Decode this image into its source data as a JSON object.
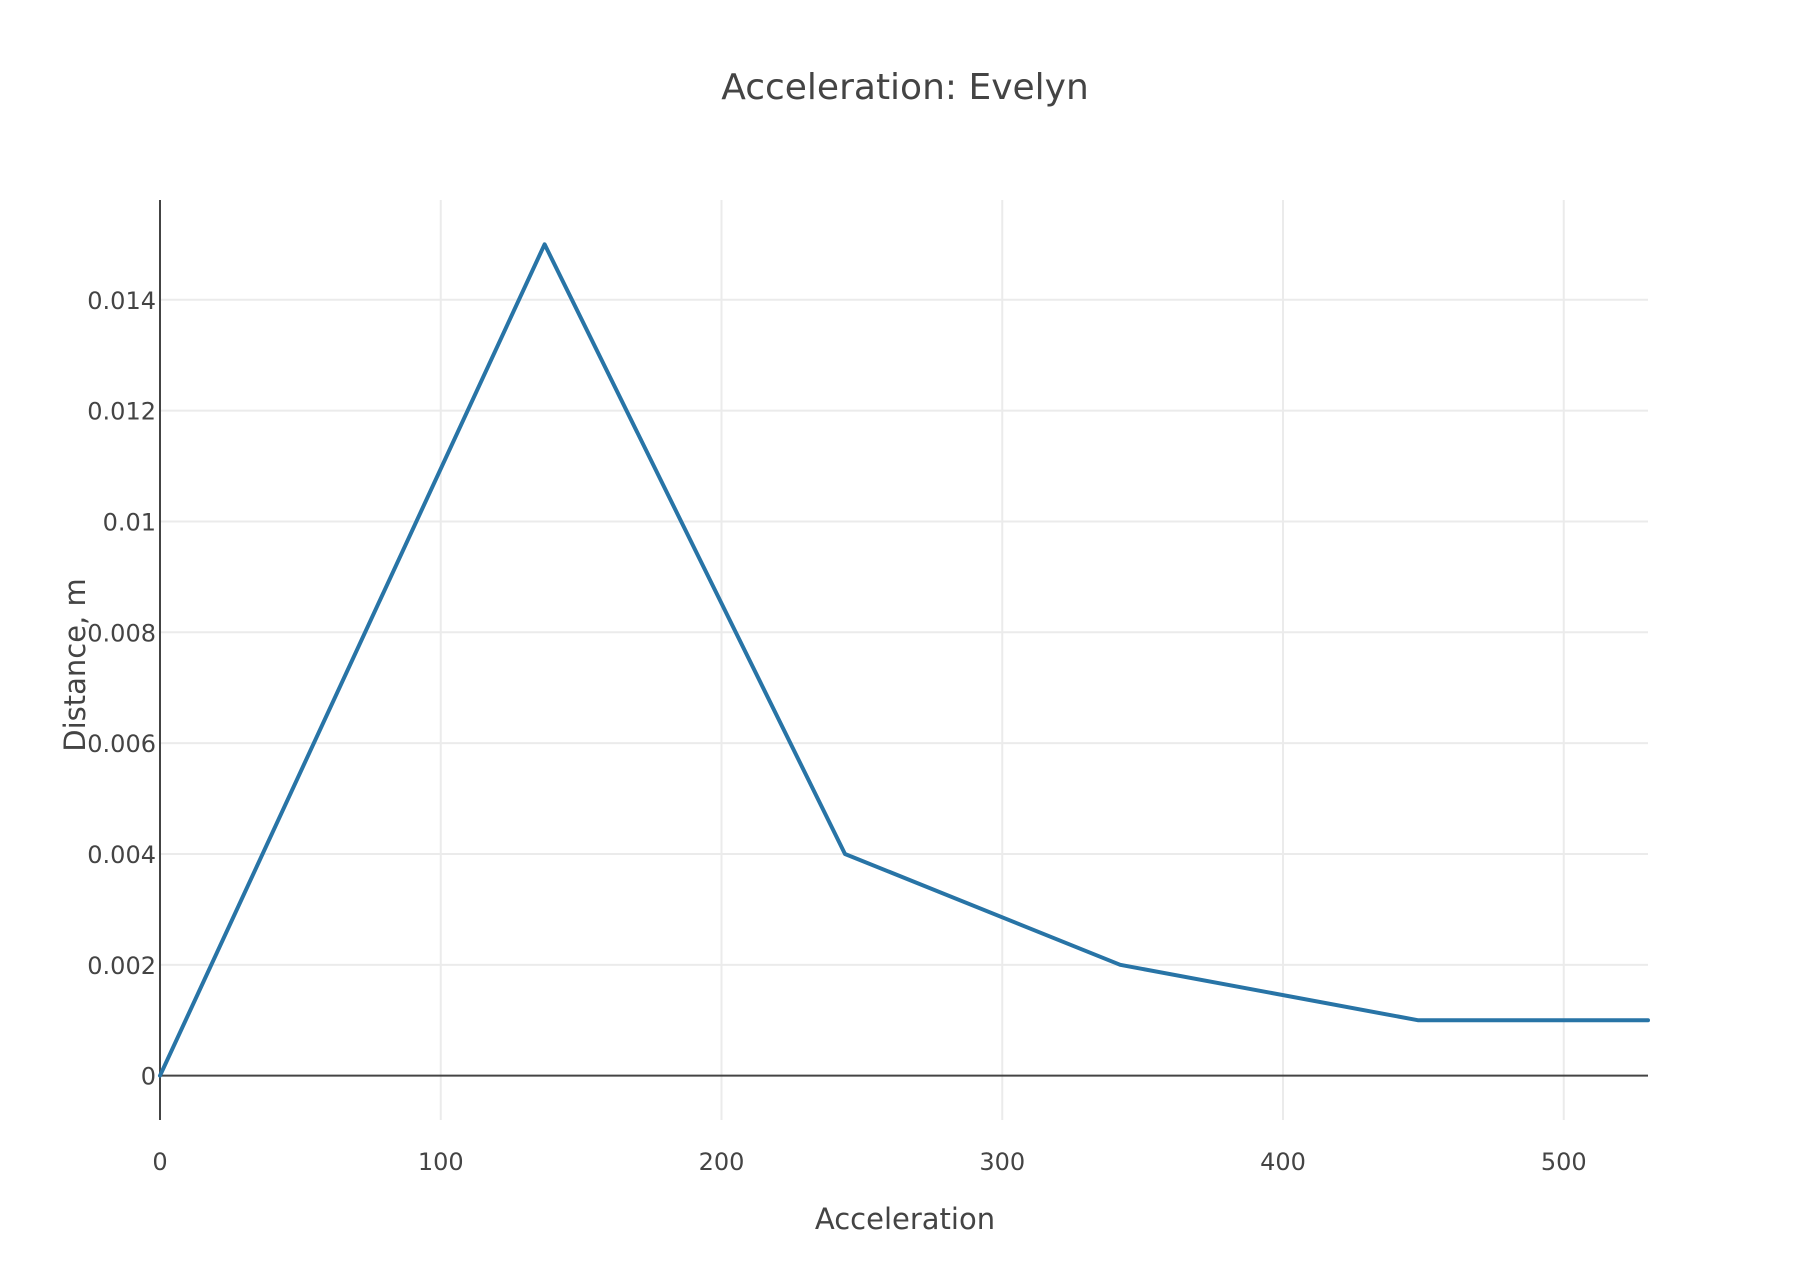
{
  "chart_data": {
    "type": "line",
    "title": "Acceleration: Evelyn",
    "xlabel": "Acceleration",
    "ylabel": "Distance, m",
    "xlim": [
      0,
      530
    ],
    "ylim": [
      -0.0008,
      0.0158
    ],
    "x_ticks": [
      0,
      100,
      200,
      300,
      400,
      500
    ],
    "x_tick_labels": [
      "0",
      "100",
      "200",
      "300",
      "400",
      "500"
    ],
    "y_ticks": [
      0,
      0.002,
      0.004,
      0.006,
      0.008,
      0.01,
      0.012,
      0.014
    ],
    "y_tick_labels": [
      "0",
      "0.002",
      "0.004",
      "0.006",
      "0.008",
      "0.01",
      "0.012",
      "0.014"
    ],
    "grid": true,
    "series": [
      {
        "color": "#2874a6",
        "x": [
          0,
          137,
          244,
          342,
          448,
          530
        ],
        "y": [
          0,
          0.015,
          0.004,
          0.002,
          0.001,
          0.001
        ]
      }
    ]
  }
}
